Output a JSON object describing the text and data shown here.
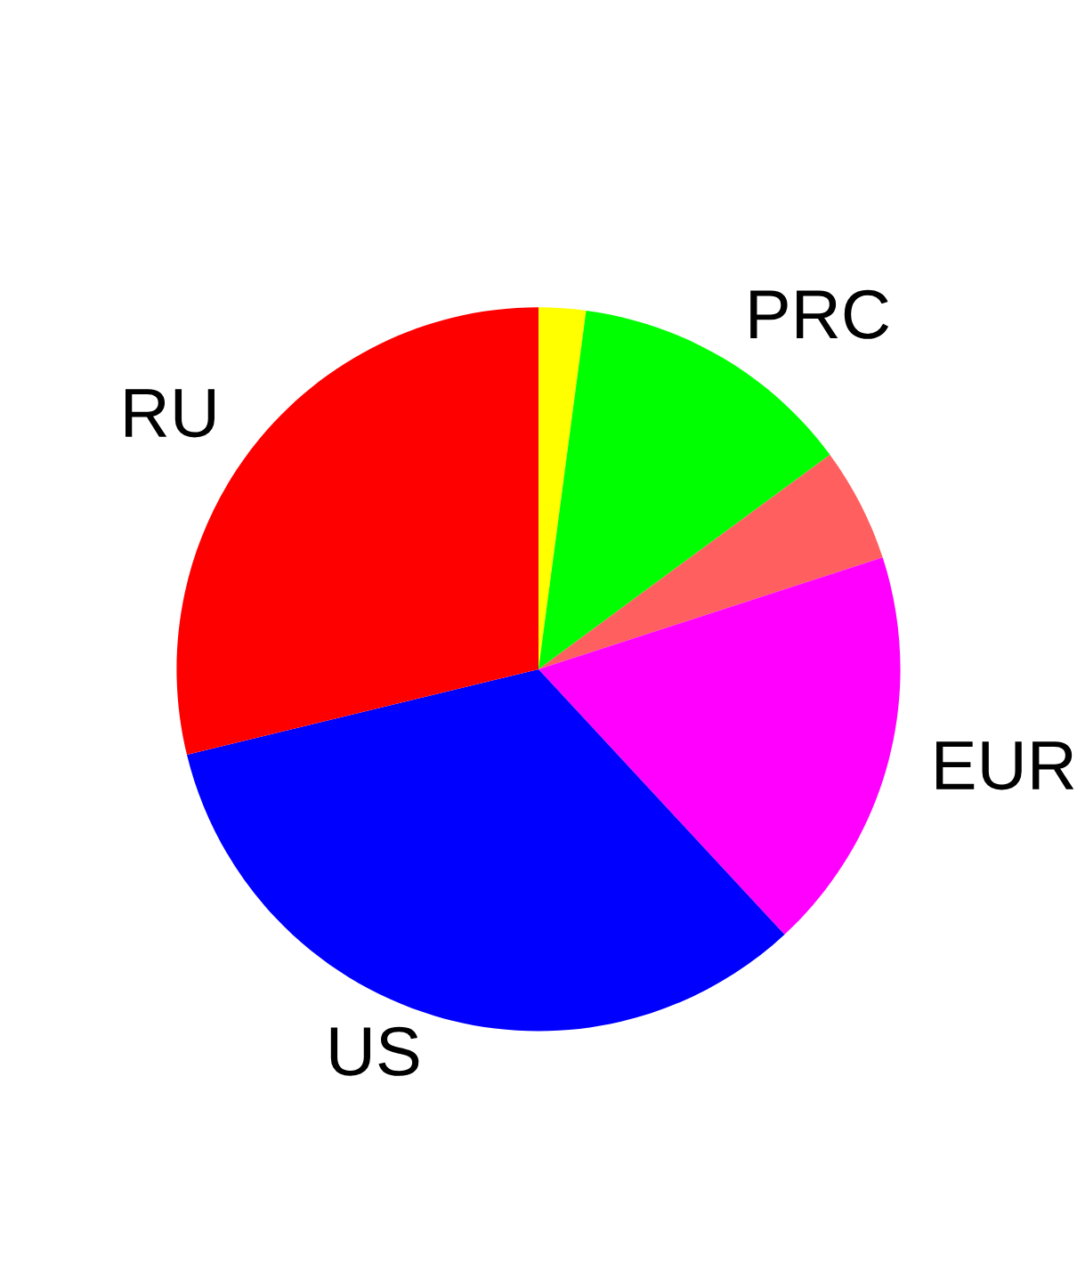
{
  "chart_data": {
    "type": "pie",
    "categories": [
      null,
      "PRC",
      null,
      "EUR",
      "US",
      "RU"
    ],
    "values": [
      2.1,
      12.8,
      5.1,
      18.1,
      33.1,
      28.8
    ],
    "colors": [
      "#ffff00",
      "#00ff00",
      "#ff5f5f",
      "#ff00ff",
      "#0000ff",
      "#ff0000"
    ]
  }
}
